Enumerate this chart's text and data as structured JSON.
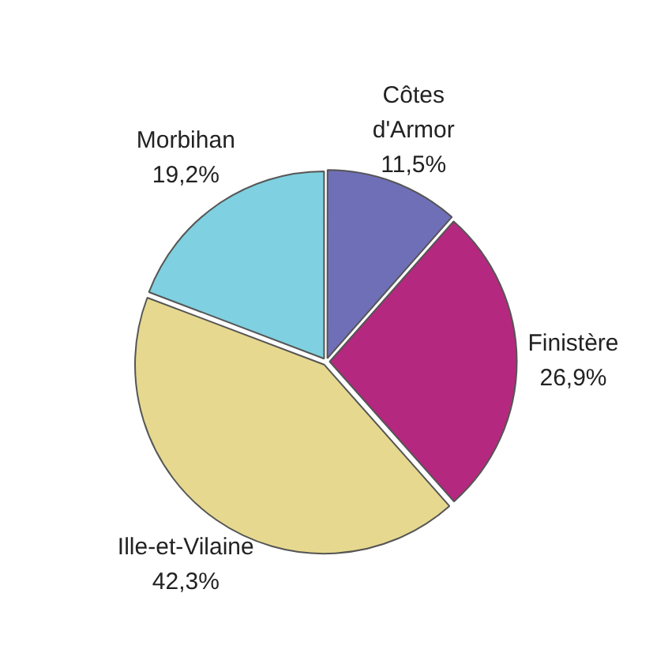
{
  "chart_data": {
    "type": "pie",
    "categories": [
      "Côtes d'Armor",
      "Finistère",
      "Ille-et-Vilaine",
      "Morbihan"
    ],
    "values": [
      11.5,
      26.9,
      42.3,
      19.2
    ],
    "colors": [
      "#6f6fb8",
      "#b5287f",
      "#e6d98f",
      "#7fd0e0"
    ],
    "value_labels": [
      "11,5%",
      "26,9%",
      "42,3%",
      "19,2%"
    ],
    "legend": false
  }
}
